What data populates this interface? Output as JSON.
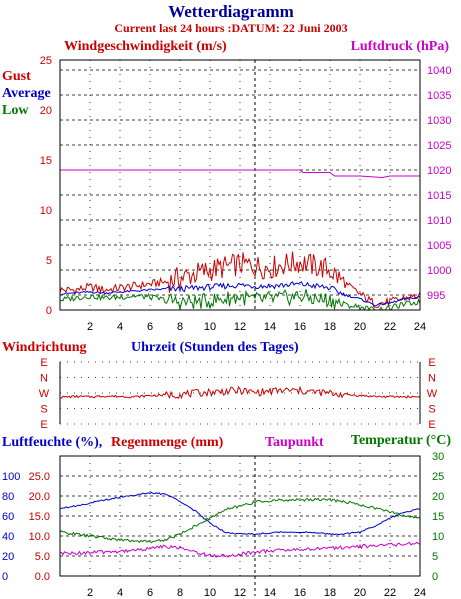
{
  "header": {
    "title": "Wetterdiagramm",
    "subtitle": "Current last 24 hours :DATUM: 22 Juni 2003"
  },
  "colors": {
    "title": "#000099",
    "red": "#cc0000",
    "blue": "#0000cc",
    "green": "#007700",
    "magenta": "#cc00cc",
    "black": "#000000"
  },
  "chart_data": [
    {
      "type": "line",
      "title": "",
      "left_axis_label": "Windgeschwindigkeit (m/s)",
      "right_axis_label": "Luftdruck (hPa)",
      "ylim_left": [
        0,
        25
      ],
      "ylim_right": [
        992,
        1042
      ],
      "xlim": [
        0,
        24
      ],
      "y_ticks_left": [
        0,
        5,
        10,
        15,
        20,
        25
      ],
      "y_ticks_right": [
        995,
        1000,
        1005,
        1010,
        1015,
        1020,
        1025,
        1030,
        1035,
        1040
      ],
      "x_ticks": [
        2,
        4,
        6,
        8,
        10,
        12,
        14,
        16,
        18,
        20,
        22,
        24
      ],
      "legend": [
        "Gust",
        "Average",
        "Low"
      ],
      "grid": true,
      "series": [
        {
          "name": "Gust",
          "color": "#cc0000",
          "x": [
            0,
            1,
            2,
            3,
            4,
            5,
            6,
            7,
            8,
            9,
            10,
            11,
            12,
            13,
            14,
            15,
            16,
            17,
            18,
            19,
            20,
            21,
            22,
            23,
            24
          ],
          "values": [
            2.0,
            2.0,
            2.3,
            2.0,
            2.2,
            2.4,
            2.6,
            2.8,
            3.2,
            3.6,
            4.0,
            4.3,
            4.6,
            4.4,
            4.2,
            4.6,
            4.8,
            4.4,
            4.0,
            2.6,
            1.6,
            0.6,
            0.8,
            1.2,
            1.4
          ]
        },
        {
          "name": "Average",
          "color": "#0000cc",
          "x": [
            0,
            1,
            2,
            3,
            4,
            5,
            6,
            7,
            8,
            9,
            10,
            11,
            12,
            13,
            14,
            15,
            16,
            17,
            18,
            19,
            20,
            21,
            22,
            23,
            24
          ],
          "values": [
            1.6,
            1.7,
            1.8,
            1.7,
            1.8,
            1.9,
            2.0,
            2.1,
            2.1,
            2.2,
            2.3,
            2.4,
            2.5,
            2.4,
            2.4,
            2.5,
            2.6,
            2.4,
            2.2,
            1.5,
            1.1,
            0.5,
            0.7,
            1.1,
            1.3
          ]
        },
        {
          "name": "Low",
          "color": "#007700",
          "x": [
            0,
            1,
            2,
            3,
            4,
            5,
            6,
            7,
            8,
            9,
            10,
            11,
            12,
            13,
            14,
            15,
            16,
            17,
            18,
            19,
            20,
            21,
            22,
            23,
            24
          ],
          "values": [
            1.0,
            1.2,
            1.4,
            1.2,
            1.3,
            1.4,
            1.3,
            1.0,
            0.8,
            0.8,
            0.9,
            1.1,
            1.3,
            1.0,
            1.1,
            1.2,
            1.4,
            1.1,
            1.0,
            0.5,
            0.3,
            0.0,
            0.2,
            0.6,
            0.8
          ]
        },
        {
          "name": "Luftdruck",
          "color": "#cc00cc",
          "axis": "right",
          "x": [
            0,
            2,
            4,
            6,
            8,
            10,
            12,
            14,
            16,
            16.2,
            18,
            18.3,
            20,
            21.5,
            22,
            24
          ],
          "values": [
            1020.0,
            1020.0,
            1020.0,
            1020.0,
            1020.0,
            1020.0,
            1020.0,
            1020.0,
            1020.0,
            1019.5,
            1019.5,
            1018.8,
            1018.8,
            1018.5,
            1018.8,
            1018.8
          ]
        }
      ]
    },
    {
      "type": "line",
      "title": "",
      "left_axis_label": "Windrichtung",
      "xlabel": "Uhrzeit (Stunden des Tages)",
      "y_categories": [
        "E",
        "N",
        "W",
        "S",
        "E"
      ],
      "y_categories_right": [
        "E",
        "N",
        "W",
        "S",
        "E"
      ],
      "xlim": [
        0,
        24
      ],
      "series": [
        {
          "name": "Windrichtung",
          "color": "#cc0000",
          "unit": "degrees",
          "x": [
            0,
            1,
            2,
            3,
            4,
            5,
            6,
            7,
            8,
            9,
            10,
            11,
            12,
            13,
            14,
            15,
            16,
            17,
            18,
            19,
            20,
            21,
            22,
            23,
            24
          ],
          "values": [
            245,
            250,
            248,
            252,
            250,
            248,
            255,
            258,
            262,
            268,
            275,
            280,
            285,
            272,
            280,
            285,
            282,
            276,
            268,
            262,
            255,
            250,
            248,
            248,
            248
          ]
        }
      ]
    },
    {
      "type": "line",
      "title": "",
      "left_axis_label": "Luftfeuchte (%),",
      "left_axis_label_2": "Regenmenge (mm)",
      "middle_label": "Taupunkt",
      "right_axis_label": "Temperatur (°C)",
      "xlim": [
        0,
        24
      ],
      "ylim_left_humidity": [
        0,
        120
      ],
      "ylim_left_rain": [
        0.0,
        30.0
      ],
      "ylim_right": [
        0,
        30
      ],
      "y_ticks_humidity": [
        0,
        20,
        40,
        60,
        80,
        100
      ],
      "y_ticks_rain": [
        "0.0",
        "5.0",
        "10.0",
        "15.0",
        "20.0",
        "25.0"
      ],
      "y_ticks_right": [
        0,
        5,
        10,
        15,
        20,
        25,
        30
      ],
      "x_ticks": [
        2,
        4,
        6,
        8,
        10,
        12,
        14,
        16,
        18,
        20,
        22,
        24
      ],
      "grid": true,
      "series": [
        {
          "name": "Luftfeuchte",
          "color": "#0000cc",
          "axis": "humidity",
          "x": [
            0,
            1,
            2,
            3,
            4,
            5,
            6,
            7,
            8,
            9,
            10,
            11,
            12,
            13,
            14,
            15,
            16,
            17,
            18,
            19,
            20,
            21,
            22,
            23,
            24
          ],
          "values": [
            68,
            70,
            73,
            76,
            79,
            81,
            83,
            82,
            75,
            65,
            53,
            44,
            42,
            42,
            43,
            44,
            44,
            43,
            42,
            42,
            44,
            50,
            58,
            64,
            67
          ]
        },
        {
          "name": "Temperatur",
          "color": "#007700",
          "axis": "right",
          "x": [
            0,
            1,
            2,
            3,
            4,
            5,
            6,
            7,
            8,
            9,
            10,
            11,
            12,
            13,
            14,
            15,
            16,
            17,
            18,
            19,
            20,
            21,
            22,
            23,
            24
          ],
          "values": [
            11,
            10.5,
            10,
            9.5,
            9,
            8.8,
            8.6,
            9,
            10.5,
            12.5,
            14.5,
            16.5,
            17.5,
            18.5,
            18.8,
            19,
            19,
            19.2,
            19,
            18.6,
            17.8,
            17,
            16,
            15,
            14.5
          ]
        },
        {
          "name": "Taupunkt",
          "color": "#cc00cc",
          "axis": "right",
          "x": [
            0,
            1,
            2,
            3,
            4,
            5,
            6,
            7,
            8,
            9,
            10,
            11,
            12,
            13,
            14,
            15,
            16,
            17,
            18,
            19,
            20,
            21,
            22,
            23,
            24
          ],
          "values": [
            5.6,
            5.7,
            5.9,
            6.0,
            6.2,
            6.5,
            6.8,
            7.5,
            7.0,
            6.0,
            5.2,
            5.0,
            5.5,
            6.0,
            6.3,
            6.5,
            6.6,
            6.8,
            7.0,
            7.2,
            7.4,
            7.6,
            7.8,
            8.0,
            8.3
          ]
        },
        {
          "name": "Regenmenge",
          "color": "#cc0000",
          "axis": "rain",
          "x": [
            0,
            24
          ],
          "values": [
            0.0,
            0.0
          ]
        }
      ]
    }
  ]
}
